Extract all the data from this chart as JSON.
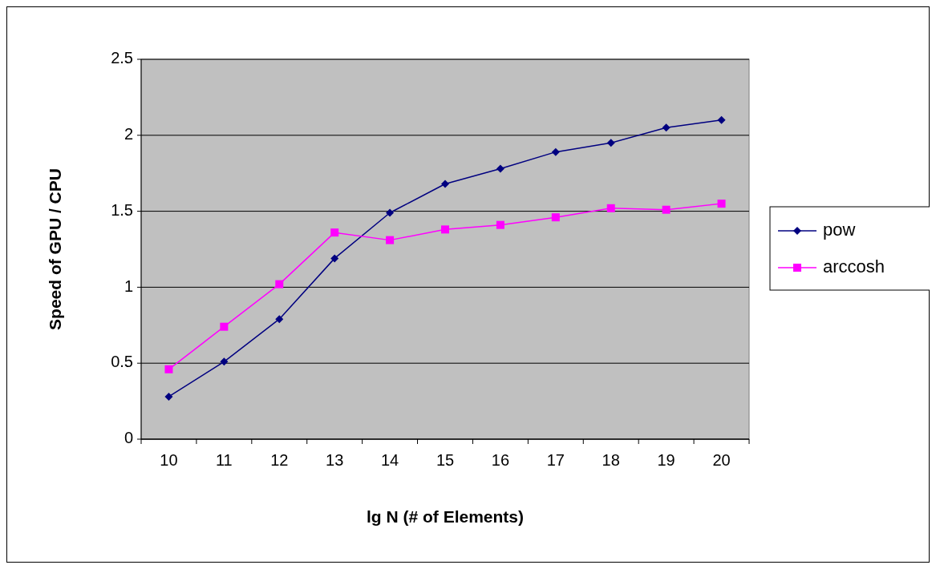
{
  "chart_data": {
    "type": "line",
    "xlabel": "lg N (# of Elements)",
    "ylabel": "Speed of GPU / CPU",
    "categories": [
      "10",
      "11",
      "12",
      "13",
      "14",
      "15",
      "16",
      "17",
      "18",
      "19",
      "20"
    ],
    "series": [
      {
        "name": "pow",
        "color": "#000080",
        "marker": "diamond",
        "values": [
          0.28,
          0.51,
          0.79,
          1.19,
          1.49,
          1.68,
          1.78,
          1.89,
          1.95,
          2.05,
          2.1
        ]
      },
      {
        "name": "arccosh",
        "color": "#ff00ff",
        "marker": "square",
        "values": [
          0.46,
          0.74,
          1.02,
          1.36,
          1.31,
          1.38,
          1.41,
          1.46,
          1.52,
          1.51,
          1.55
        ]
      }
    ],
    "ylim": [
      0,
      2.5
    ],
    "yticks": [
      0,
      0.5,
      1,
      1.5,
      2,
      2.5
    ],
    "grid": "y",
    "legend": "right"
  }
}
